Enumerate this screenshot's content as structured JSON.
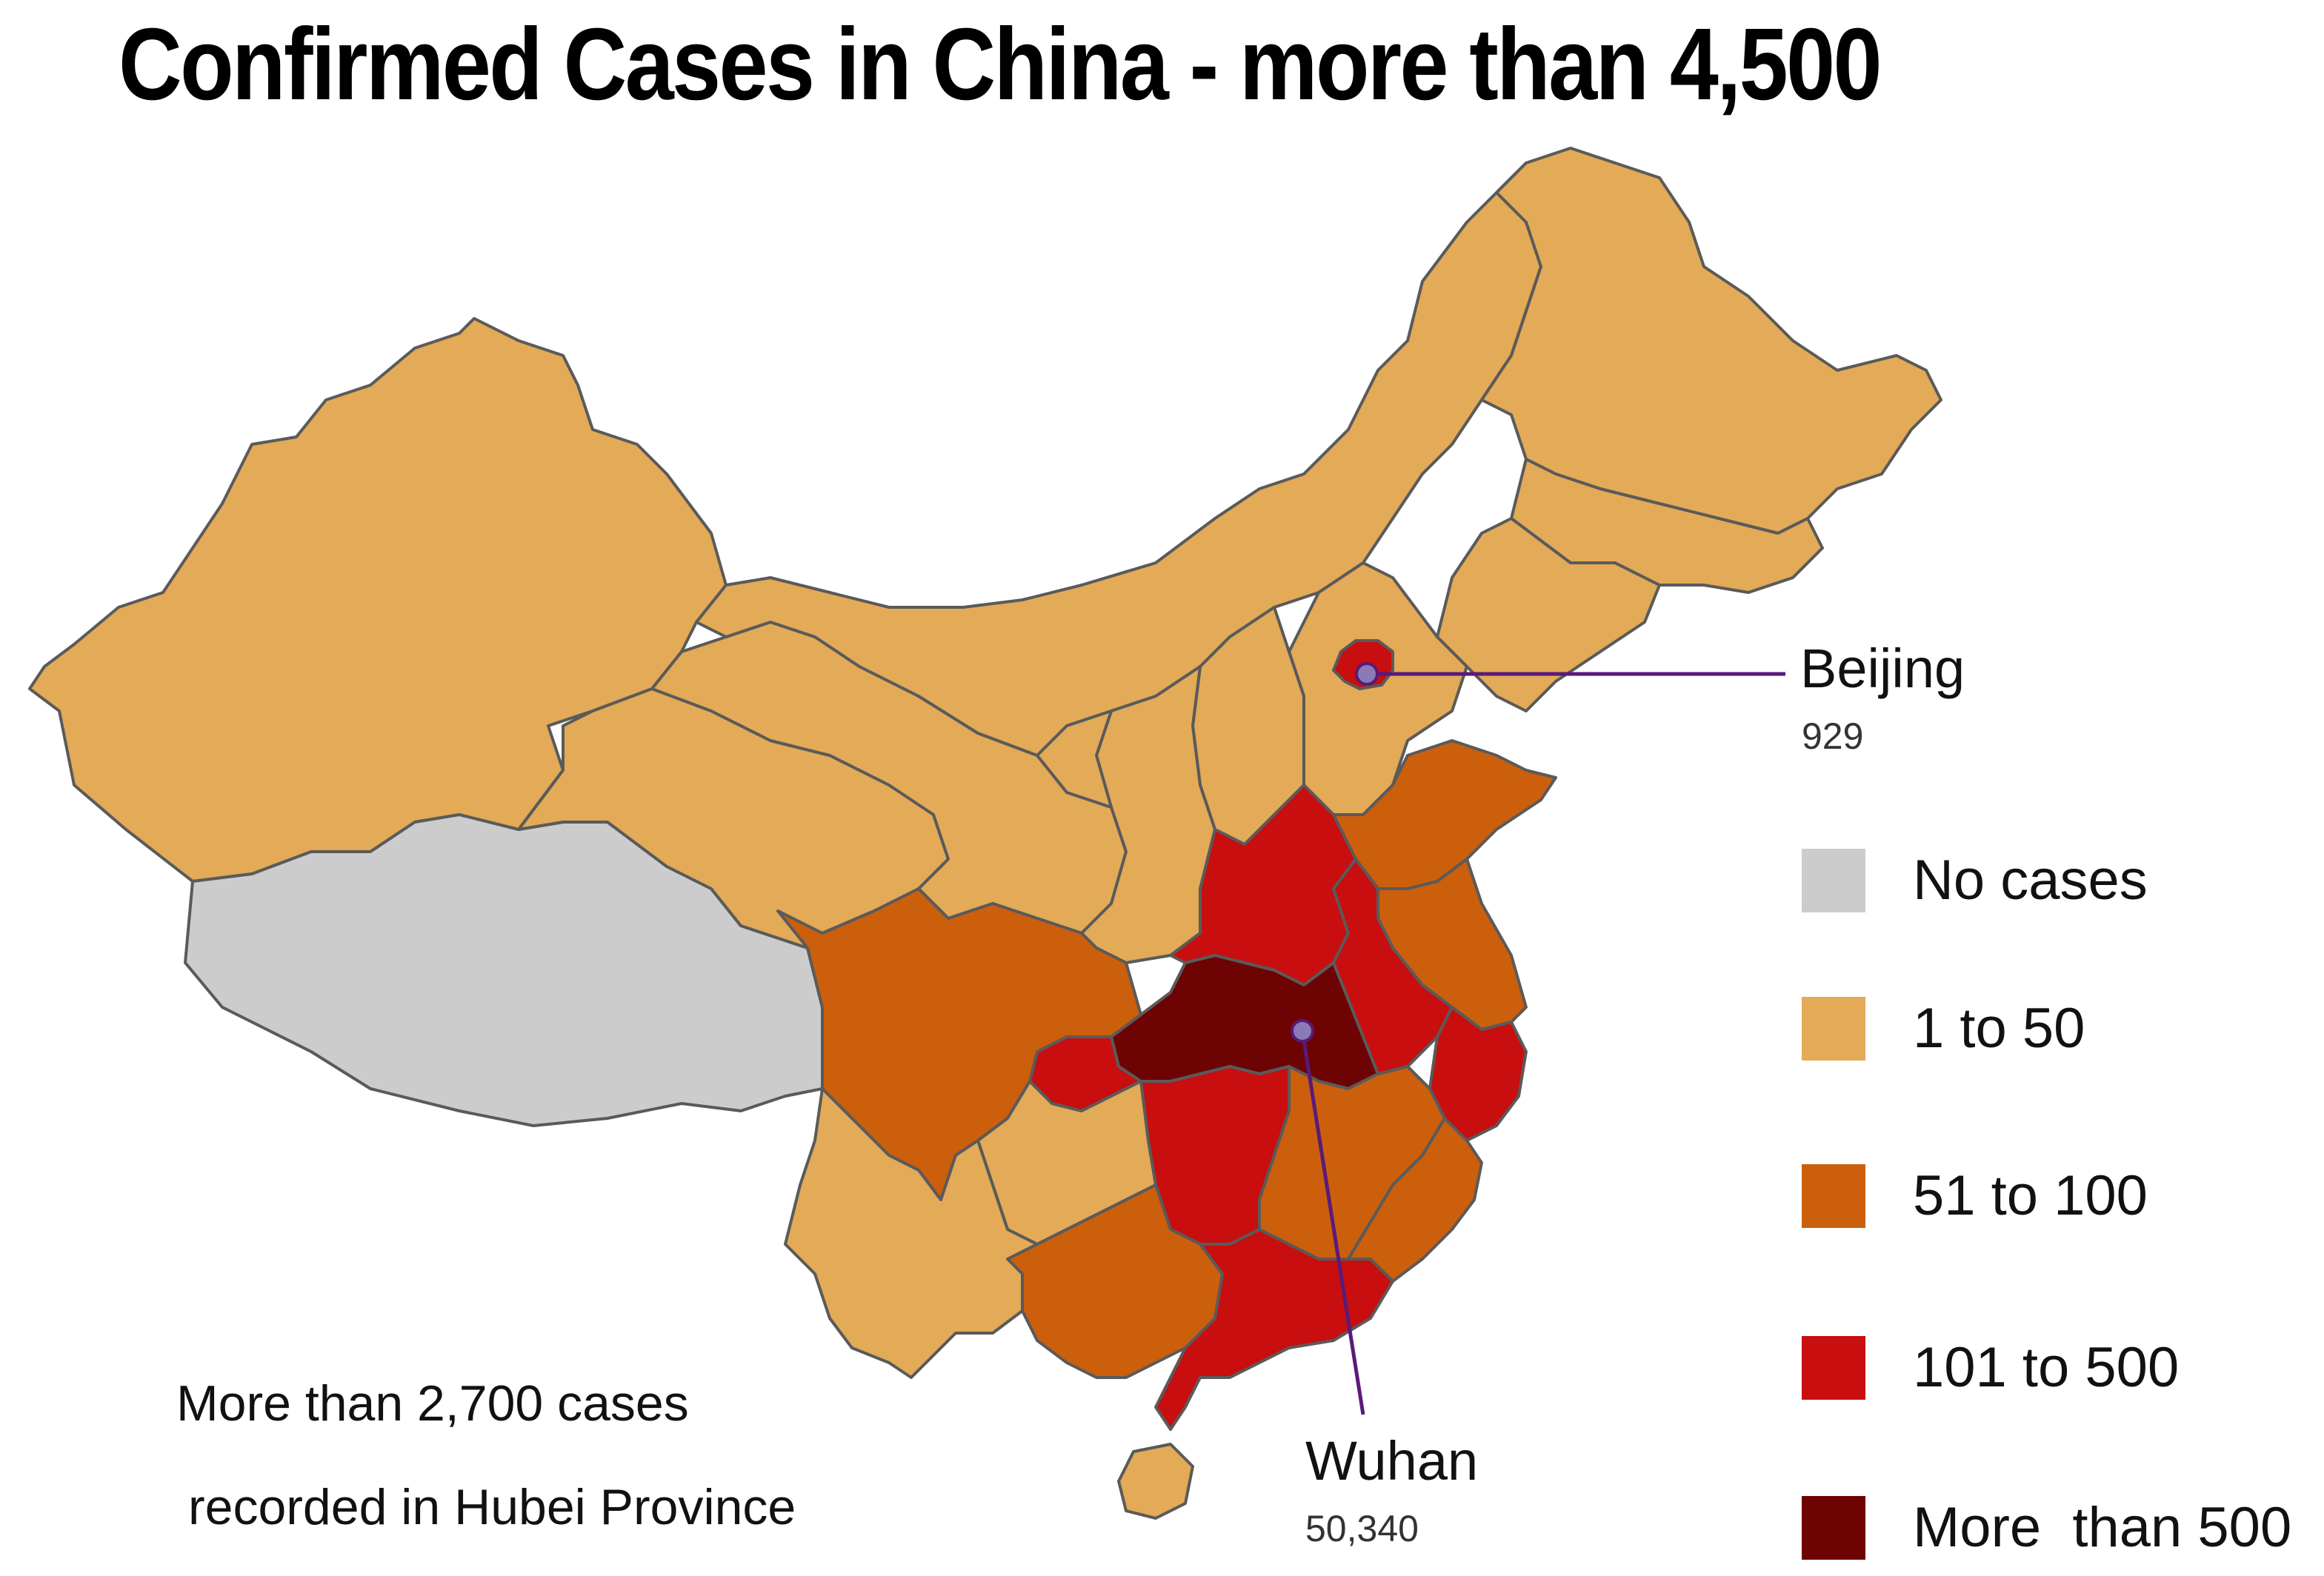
{
  "title": "Confirmed Cases in China - more than 4,500",
  "colors": {
    "no_cases": "#cccccc",
    "1_to_50": "#e3aa57",
    "51_to_100": "#cc5f0c",
    "101_to_500": "#c80e0e",
    "more_than_500": "#6e0303",
    "callout_line": "#5a1a78"
  },
  "callouts": {
    "beijing": {
      "label": "Beijing",
      "value": "929"
    },
    "wuhan": {
      "label": "Wuhan",
      "value": "50,340"
    }
  },
  "legend": {
    "items": [
      {
        "label": "No cases",
        "color": "#cccccc"
      },
      {
        "label": "1 to 50",
        "color": "#e3aa57"
      },
      {
        "label": "51 to 100",
        "color": "#cc5f0c"
      },
      {
        "label": "101 to 500",
        "color": "#c80e0e"
      },
      {
        "label": "More  than 500",
        "color": "#6e0303"
      }
    ]
  },
  "note": {
    "line1": "More than 2,700 cases",
    "line2": "recorded in Hubei Province"
  }
}
